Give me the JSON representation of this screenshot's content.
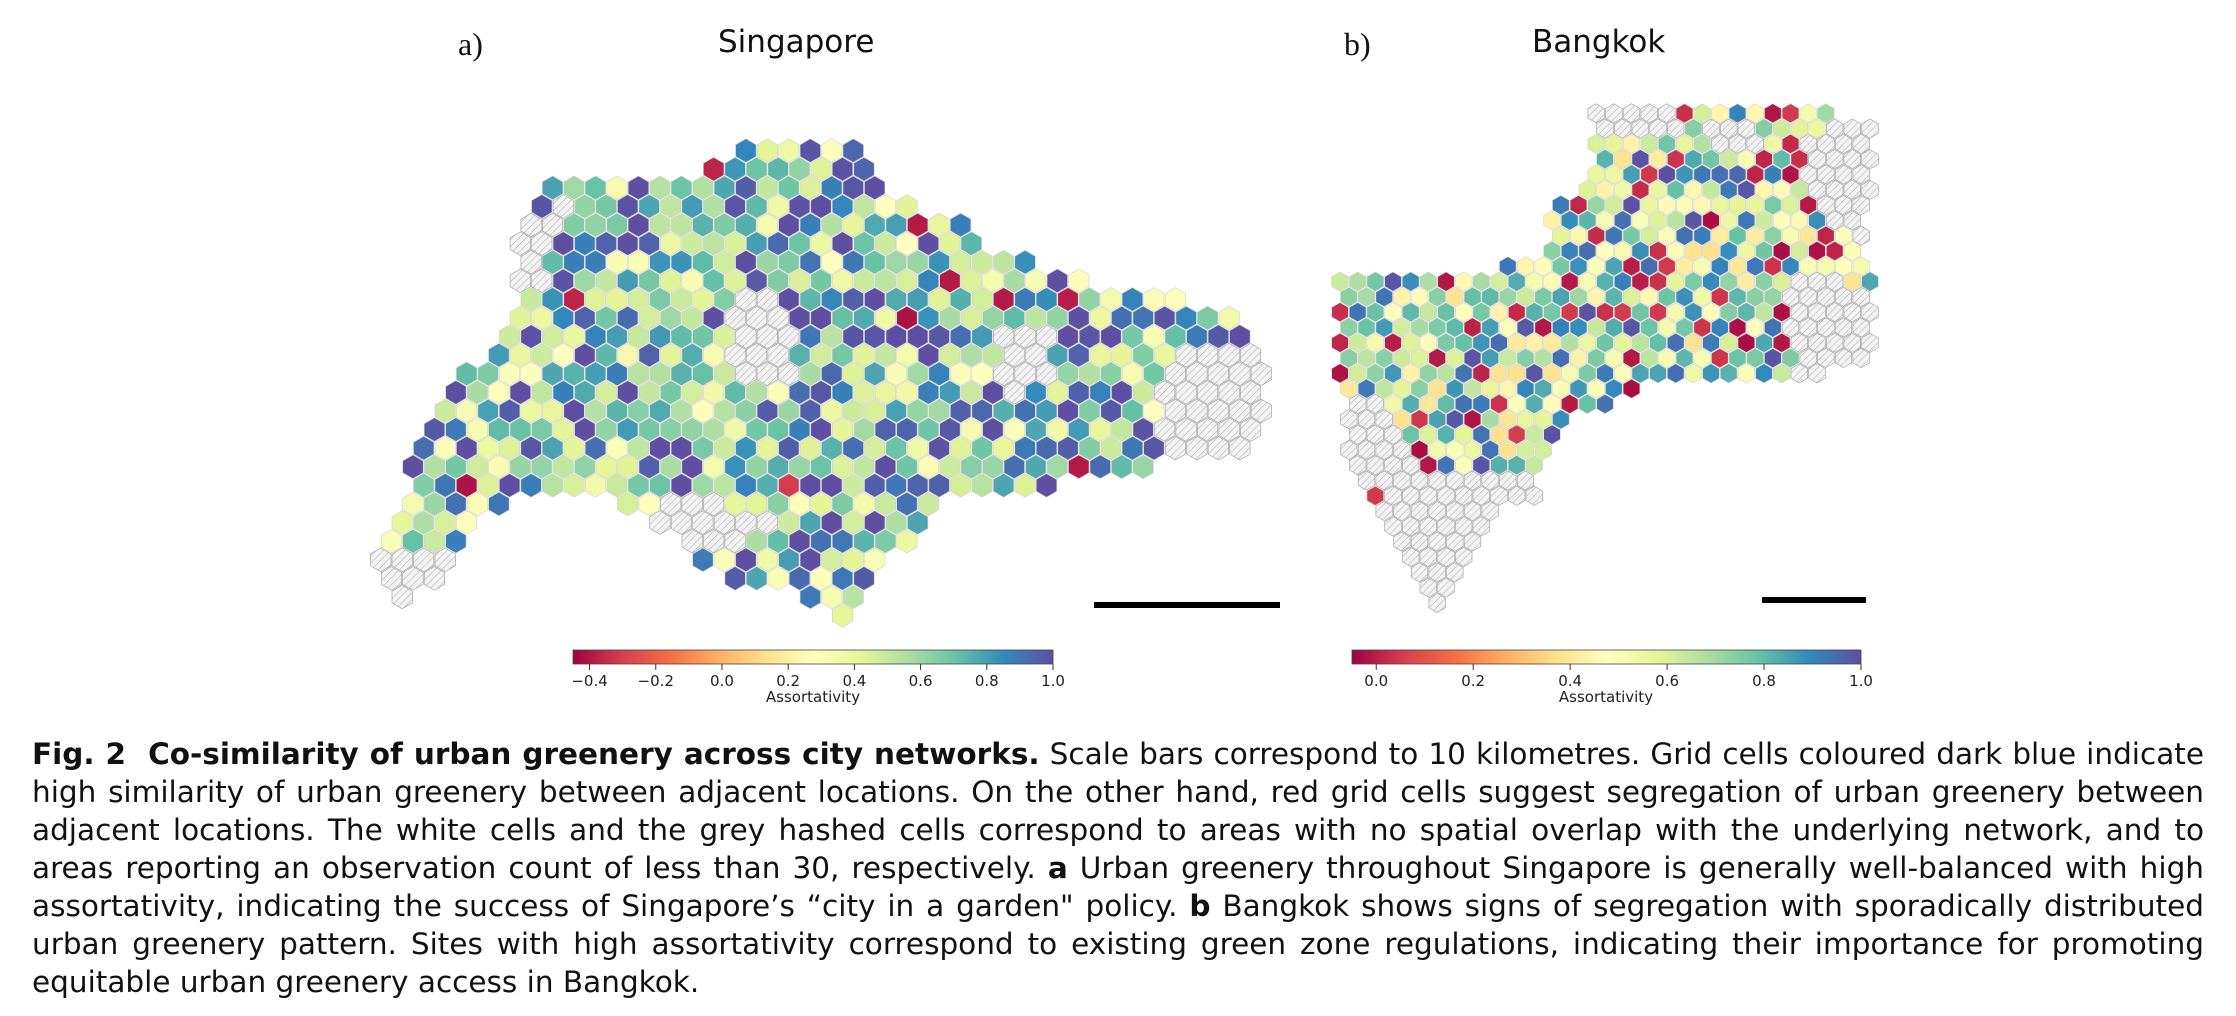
{
  "panels": [
    {
      "id": "a",
      "label": "a)",
      "title": "Singapore",
      "colorbar": {
        "label": "Assortativity",
        "ticks": [
          "−0.4",
          "−0.2",
          "0.0",
          "0.2",
          "0.4",
          "0.6",
          "0.8",
          "1.0"
        ],
        "range": [
          -0.45,
          1.0
        ]
      }
    },
    {
      "id": "b",
      "label": "b)",
      "title": "Bangkok",
      "colorbar": {
        "label": "Assortativity",
        "ticks": [
          "0.0",
          "0.2",
          "0.4",
          "0.6",
          "0.8",
          "1.0"
        ],
        "range": [
          -0.05,
          1.0
        ]
      }
    }
  ],
  "colors": {
    "low": "#9e0142",
    "mid": "#ffffbf",
    "high": "#5e4fa2",
    "hatched_cell": "#e6e6e6",
    "scale_bar": "#000000"
  },
  "caption": {
    "fig_label": "Fig. 2",
    "title": "Co-similarity of urban greenery across city networks.",
    "text_1": " Scale bars correspond to 10 kilometres. Grid cells coloured dark blue indicate high similarity of urban greenery between adjacent locations. On the other hand, red grid cells suggest segregation of urban greenery between adjacent locations. The white cells and the grey hashed cells correspond to areas with no spatial overlap with the underlying network, and to areas reporting an observation count of less than 30, respectively. ",
    "a_marker": "a",
    "text_a": " Urban greenery throughout Singapore is generally well-balanced with high assortativity, indicating the success of Singapore’s “city in a garden\" policy. ",
    "b_marker": "b",
    "text_b": " Bangkok shows signs of segregation with sporadically distributed urban greenery pattern. Sites with high assortativity correspond to existing green zone regulations, indicating their importance for promoting equitable urban greenery access in Bangkok."
  }
}
